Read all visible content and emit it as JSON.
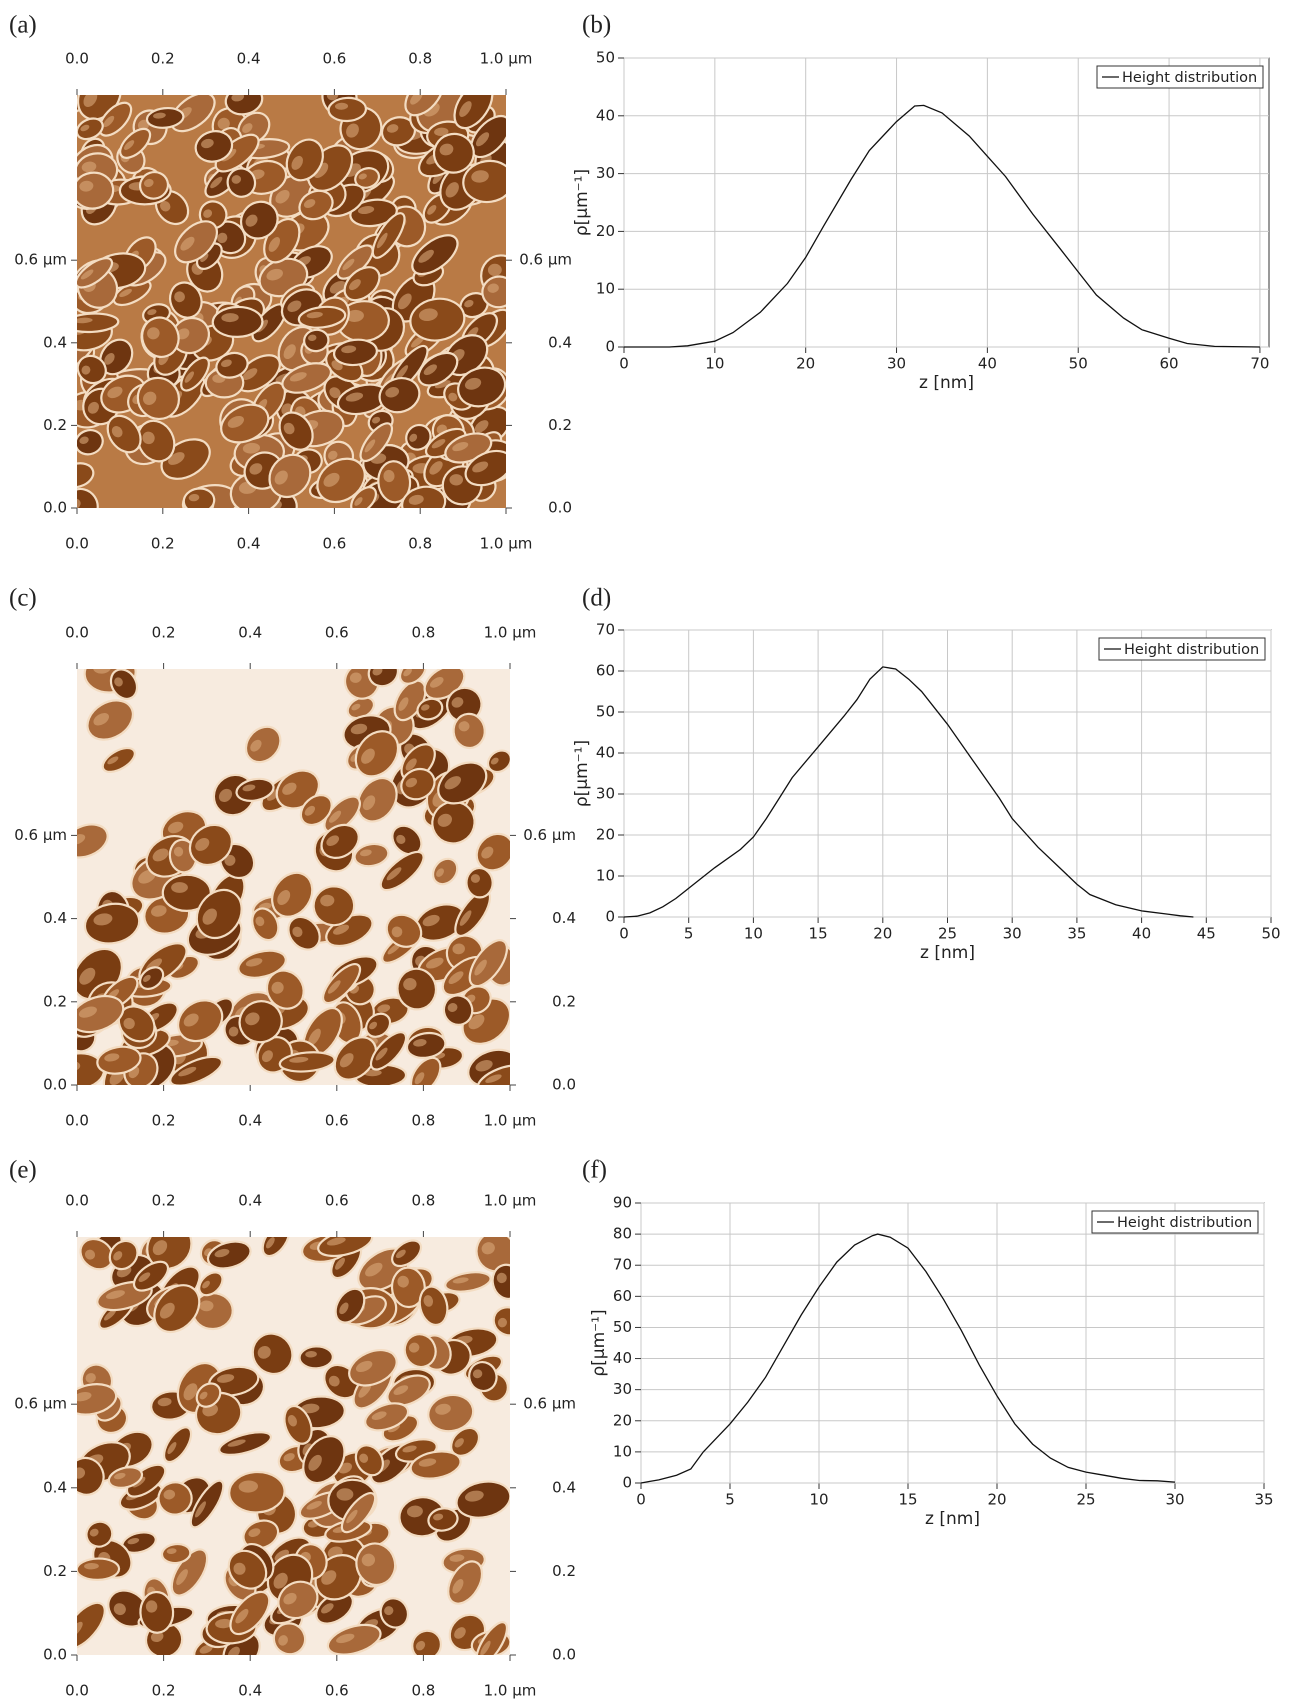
{
  "chart_data": [
    {
      "type": "image",
      "panel": "(a)",
      "xlim": [
        0,
        1
      ],
      "ylim": [
        0,
        1
      ],
      "xticks": [
        {
          "value": 0,
          "label": "0.0"
        },
        0.2,
        0.4,
        0.6,
        0.8,
        {
          "value": 1,
          "label": "1.0 µm"
        }
      ],
      "yticks": [
        {
          "value": 0,
          "label": "0.0"
        },
        0.2,
        0.4,
        {
          "value": 0.6,
          "label": "0.6 µm"
        }
      ]
    },
    {
      "type": "line",
      "panel": "(b)",
      "xlabel": "z [nm]",
      "ylabel": "ρ[µm⁻¹]",
      "grid": true,
      "legend": "upper right",
      "xlim": [
        0,
        71
      ],
      "ylim": [
        0,
        50
      ],
      "xticks": [
        0,
        10,
        20,
        30,
        40,
        50,
        60,
        70
      ],
      "yticks": [
        0,
        10,
        20,
        30,
        40,
        50
      ],
      "x": [
        0,
        5,
        7,
        10,
        12,
        15,
        18,
        20,
        22,
        25,
        27,
        30,
        32,
        33,
        35,
        38,
        40,
        42,
        45,
        48,
        50,
        52,
        55,
        57,
        60,
        62,
        65,
        70
      ],
      "series": [
        {
          "name": "Height distribution",
          "color": "#111111",
          "values": [
            0,
            0,
            0.2,
            1,
            2.5,
            6,
            11,
            15.5,
            21,
            29,
            34,
            39,
            41.7,
            41.8,
            40.5,
            36.5,
            33,
            29.5,
            23,
            17,
            13,
            9,
            5,
            3,
            1.5,
            0.6,
            0.1,
            0
          ]
        }
      ]
    },
    {
      "type": "image",
      "panel": "(c)",
      "xlim": [
        0,
        1
      ],
      "ylim": [
        0,
        1
      ],
      "xticks": [
        {
          "value": 0,
          "label": "0.0"
        },
        0.2,
        0.4,
        0.6,
        0.8,
        {
          "value": 1,
          "label": "1.0 µm"
        }
      ],
      "yticks": [
        {
          "value": 0,
          "label": "0.0"
        },
        0.2,
        0.4,
        {
          "value": 0.6,
          "label": "0.6 µm"
        }
      ]
    },
    {
      "type": "line",
      "panel": "(d)",
      "xlabel": "z [nm]",
      "ylabel": "ρ[µm⁻¹]",
      "grid": true,
      "legend": "upper right",
      "xlim": [
        0,
        50
      ],
      "ylim": [
        0,
        70
      ],
      "xticks": [
        0,
        5,
        10,
        15,
        20,
        25,
        30,
        35,
        40,
        45,
        50
      ],
      "yticks": [
        0,
        10,
        20,
        30,
        40,
        50,
        60,
        70
      ],
      "x": [
        0,
        1,
        2,
        3,
        4,
        5,
        7,
        9,
        10,
        11,
        12,
        13,
        15,
        17,
        18,
        19,
        20,
        21,
        22,
        23,
        25,
        27,
        29,
        30,
        32,
        34,
        35,
        36,
        38,
        40,
        42,
        43,
        44
      ],
      "series": [
        {
          "name": "Height distribution",
          "color": "#111111",
          "values": [
            0,
            0.2,
            1,
            2.5,
            4.5,
            7,
            12,
            16.5,
            19.5,
            24,
            29,
            34,
            41.5,
            49,
            53,
            58,
            61,
            60.5,
            58,
            55,
            47,
            38,
            29,
            24,
            17,
            11,
            8,
            5.5,
            3,
            1.5,
            0.7,
            0.3,
            0
          ]
        }
      ]
    },
    {
      "type": "image",
      "panel": "(e)",
      "xlim": [
        0,
        1
      ],
      "ylim": [
        0,
        1
      ],
      "xticks": [
        {
          "value": 0,
          "label": "0.0"
        },
        0.2,
        0.4,
        0.6,
        0.8,
        {
          "value": 1,
          "label": "1.0 µm"
        }
      ],
      "yticks": [
        {
          "value": 0,
          "label": "0.0"
        },
        0.2,
        0.4,
        {
          "value": 0.6,
          "label": "0.6 µm"
        }
      ]
    },
    {
      "type": "line",
      "panel": "(f)",
      "xlabel": "z [nm]",
      "ylabel": "ρ[µm⁻¹]",
      "grid": true,
      "legend": "upper right",
      "xlim": [
        0,
        35
      ],
      "ylim": [
        0,
        90
      ],
      "xticks": [
        0,
        5,
        10,
        15,
        20,
        25,
        30,
        35
      ],
      "yticks": [
        0,
        10,
        20,
        30,
        40,
        50,
        60,
        70,
        80,
        90
      ],
      "x": [
        0,
        0.5,
        1,
        2,
        2.8,
        3.5,
        4,
        5,
        6,
        7,
        8,
        9,
        10,
        11,
        12,
        13,
        13.3,
        14,
        15,
        16,
        17,
        18,
        19,
        20,
        21,
        22,
        23,
        24,
        25,
        26,
        27,
        28,
        29,
        30
      ],
      "series": [
        {
          "name": "Height distribution",
          "color": "#111111",
          "values": [
            0,
            0.5,
            1,
            2.5,
            4.5,
            10,
            13,
            19,
            26,
            34,
            44,
            54,
            63,
            71,
            76.5,
            79.5,
            80,
            79,
            75.5,
            68,
            59,
            49,
            38,
            28,
            19,
            12.5,
            8,
            5,
            3.5,
            2.5,
            1.5,
            0.8,
            0.7,
            0.3
          ]
        }
      ]
    }
  ]
}
